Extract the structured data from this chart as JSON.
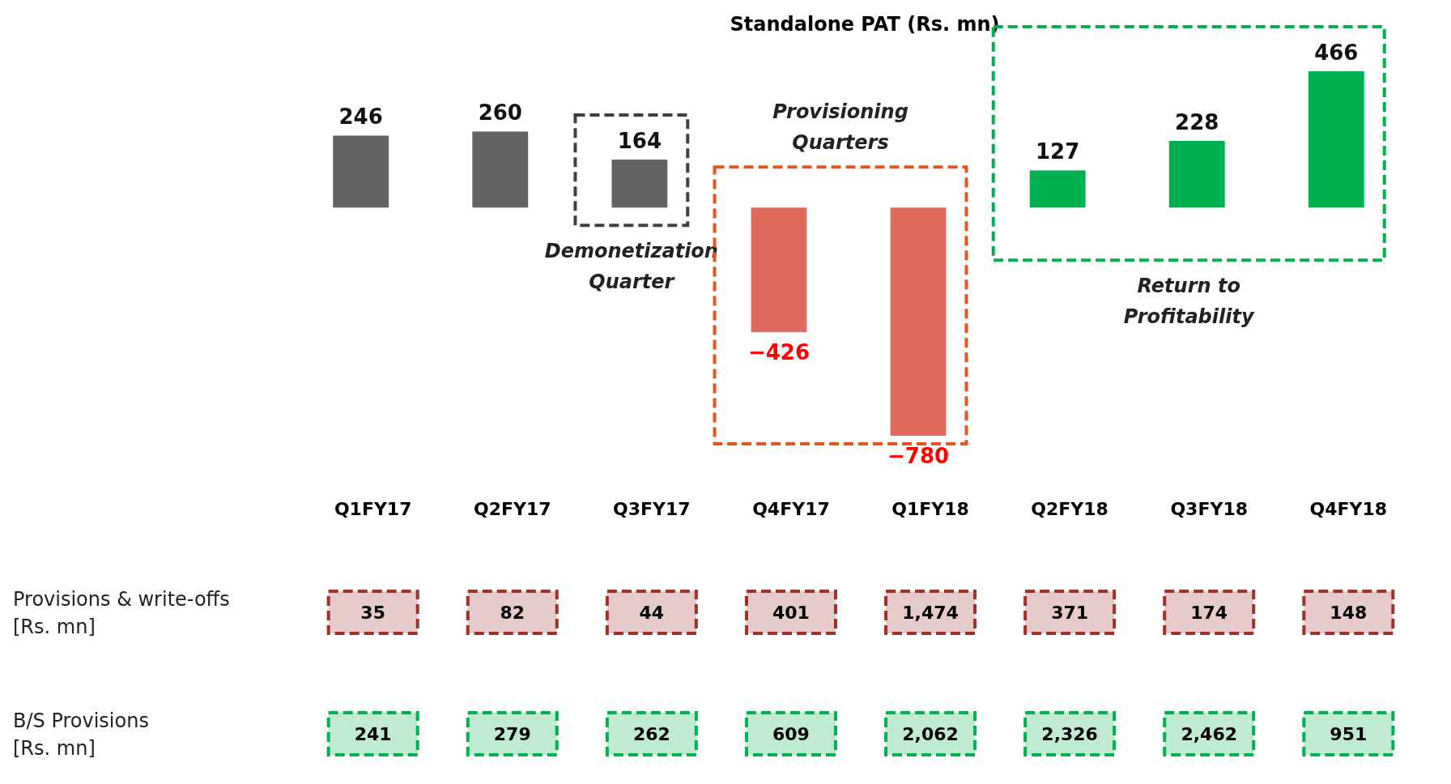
{
  "chart_data": [
    {
      "type": "bar",
      "title": "Standalone PAT (Rs. mn)",
      "categories": [
        "Q1FY17",
        "Q2FY17",
        "Q3FY17",
        "Q4FY17",
        "Q1FY18",
        "Q2FY18",
        "Q3FY18",
        "Q4FY18"
      ],
      "values": [
        246,
        260,
        164,
        -426,
        -780,
        127,
        228,
        466
      ],
      "colors": [
        "#636363",
        "#636363",
        "#636363",
        "#e06b5d",
        "#e06b5d",
        "#00b050",
        "#00b050",
        "#00b050"
      ],
      "data_labels": true,
      "annotations": [
        "Demonetization Quarter",
        "Provisioning Quarters",
        "Return to Profitability"
      ]
    },
    {
      "type": "other",
      "ylabel": "Provisions & write-offs [Rs. mn]",
      "values": [
        35,
        82,
        44,
        401,
        1474,
        371,
        174,
        148
      ],
      "value_labels": [
        "35",
        "82",
        "44",
        "401",
        "1,474",
        "371",
        "174",
        "148"
      ],
      "color": "#a0302a"
    },
    {
      "type": "other",
      "ylabel": "B/S Provisions [Rs. mn]",
      "values": [
        241,
        279,
        262,
        609,
        2062,
        2326,
        2462,
        951
      ],
      "value_labels": [
        "241",
        "279",
        "262",
        "609",
        "2,062",
        "2,326",
        "2,462",
        "951"
      ],
      "color": "#00b050"
    }
  ]
}
